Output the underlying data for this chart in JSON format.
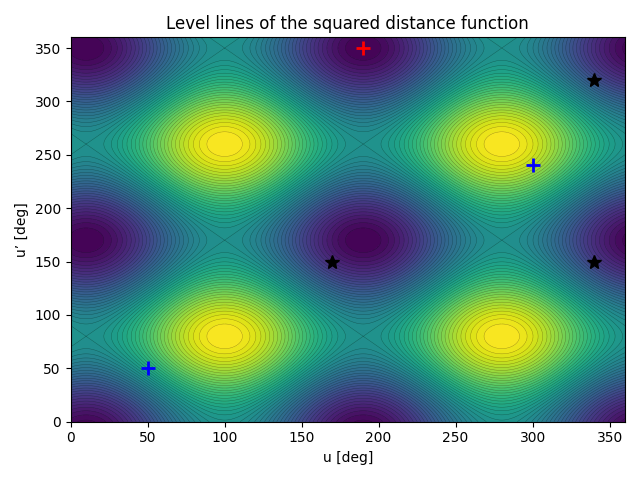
{
  "title": "Level lines of the squared distance function",
  "xlabel": "u [deg]",
  "ylabel": "u’ [deg]",
  "xlim": [
    0,
    360
  ],
  "ylim": [
    0,
    360
  ],
  "xticks": [
    0,
    50,
    100,
    150,
    200,
    250,
    300,
    350
  ],
  "yticks": [
    0,
    50,
    100,
    150,
    200,
    250,
    300,
    350
  ],
  "red_plus": [
    190,
    350
  ],
  "blue_plus_1": [
    50,
    50
  ],
  "blue_plus_2": [
    300,
    240
  ],
  "black_star_1": [
    170,
    150
  ],
  "black_star_2": [
    340,
    150
  ],
  "black_star_3": [
    340,
    320
  ],
  "n_levels": 50,
  "cmap": "viridis",
  "ref_u": 190,
  "ref_up": 350
}
